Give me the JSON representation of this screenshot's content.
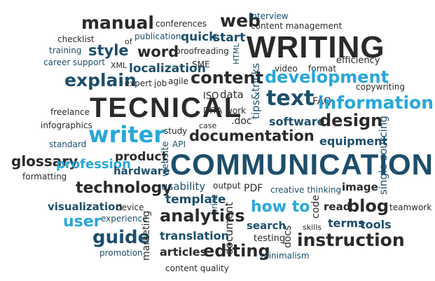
{
  "colors": {
    "dark": "#2a2a2a",
    "navy": "#1d4e6b",
    "teal": "#2a6f8a",
    "light_blue": "#2aa7d8"
  },
  "words": {
    "manual": "manual",
    "conferences": "conferences",
    "web": "web",
    "interview": "interview",
    "content_management": "content management",
    "checklist": "checklist",
    "publication": "publication",
    "quick": "quick",
    "start": "start",
    "writing": "WRITING",
    "of": "of",
    "training": "training",
    "style": "style",
    "word": "word",
    "proofreading": "proofreading",
    "html": "HTML",
    "efficiency": "efficiency",
    "career": "career",
    "support": "support",
    "xml": "XML",
    "localization": "localization",
    "sme": "SME",
    "video": "video",
    "format": "format",
    "explain": "explain",
    "expert": "expert",
    "job": "job",
    "agile": "agile",
    "content": "content",
    "tips_tricks": "tips&tricks",
    "development": "development",
    "copywriting": "copywriting",
    "iso": "ISO",
    "data": "data",
    "tecnical": "TECNICAL",
    "text": "text",
    "faq": "FAQ",
    "information": "information",
    "freelance": "freelance",
    "dita": "DITA",
    "work": "work",
    "doc": ".doc",
    "software": "software",
    "design": "design",
    "infographics": "infographics",
    "case": "case",
    "writer": "writer",
    "study": "study",
    "documentation": "documentation",
    "standard": "standard",
    "api": "API",
    "equipment": "equipment",
    "glossary": "glossary",
    "product": "product",
    "profession": "profession",
    "website": "website",
    "communication": "COMMUNICATION",
    "single_sourcing": "single sourcing",
    "hardware": "hardware",
    "formatting": "formatting",
    "technology": "technology",
    "usability": "usability",
    "output": "output",
    "pdf": "PDF",
    "creative_thinking": "creative thinking",
    "image": "image",
    "print": "print",
    "template": "template",
    "how_to": "how to",
    "code": "code",
    "read": "read",
    "blog": "blog",
    "teamwork": "teamwork",
    "visualization": "visualization",
    "device": "device",
    "analytics": "analytics",
    "user": "user",
    "experience": "experience",
    "document": "document",
    "skills": "skills",
    "terms": "terms",
    "tools": "tools",
    "guide": "guide",
    "marketing": "marketing",
    "search": "search",
    "translation": "translation",
    "testing": "testing",
    "docs": "docs",
    "instruction": "instruction",
    "promotion": "promotion",
    "articles": "articles",
    "editing": "editing",
    "minimalism": "minimalism",
    "content_quality": "content quality"
  }
}
